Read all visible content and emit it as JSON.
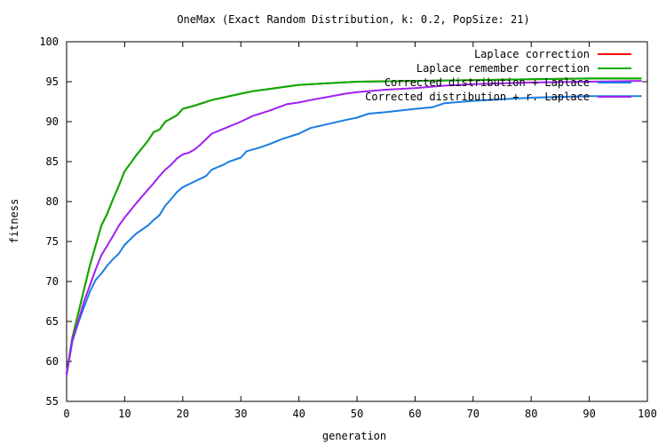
{
  "chart_data": {
    "type": "line",
    "title": "OneMax (Exact Random Distribution, k: 0.2, PopSize: 21)",
    "xlabel": "generation",
    "ylabel": "fitness",
    "xlim": [
      0,
      100
    ],
    "ylim": [
      55,
      100
    ],
    "x_ticks": [
      0,
      10,
      20,
      30,
      40,
      50,
      60,
      70,
      80,
      90,
      100
    ],
    "y_ticks": [
      55,
      60,
      65,
      70,
      75,
      80,
      85,
      90,
      95,
      100
    ],
    "grid": false,
    "legend_position": "top-right",
    "series": [
      {
        "name": "Laplace correction",
        "color": "#ff0000",
        "points": [
          [
            0,
            58.5
          ],
          [
            1,
            63
          ],
          [
            2,
            66
          ],
          [
            3,
            69
          ],
          [
            4,
            72
          ],
          [
            5,
            74.5
          ],
          [
            6,
            77
          ],
          [
            7,
            78.5
          ],
          [
            8,
            80.3
          ],
          [
            9,
            82
          ],
          [
            10,
            83.8
          ],
          [
            12,
            85.8
          ],
          [
            14,
            87.6
          ],
          [
            15,
            88.7
          ],
          [
            16,
            89
          ],
          [
            17,
            90
          ],
          [
            19,
            90.8
          ],
          [
            20,
            91.6
          ],
          [
            22,
            92
          ],
          [
            25,
            92.7
          ],
          [
            30,
            93.5
          ],
          [
            32,
            93.8
          ],
          [
            35,
            94.1
          ],
          [
            38,
            94.4
          ],
          [
            40,
            94.6
          ],
          [
            45,
            94.8
          ],
          [
            50,
            95
          ],
          [
            60,
            95.1
          ],
          [
            70,
            95.2
          ],
          [
            80,
            95.3
          ],
          [
            90,
            95.4
          ],
          [
            99,
            95.4
          ]
        ]
      },
      {
        "name": "Laplace remember correction",
        "color": "#00b000",
        "points": [
          [
            0,
            58.5
          ],
          [
            1,
            63
          ],
          [
            2,
            66
          ],
          [
            3,
            69
          ],
          [
            4,
            72
          ],
          [
            5,
            74.5
          ],
          [
            6,
            77
          ],
          [
            7,
            78.5
          ],
          [
            8,
            80.3
          ],
          [
            9,
            82
          ],
          [
            10,
            83.8
          ],
          [
            12,
            85.8
          ],
          [
            14,
            87.6
          ],
          [
            15,
            88.7
          ],
          [
            16,
            89
          ],
          [
            17,
            90
          ],
          [
            19,
            90.8
          ],
          [
            20,
            91.6
          ],
          [
            22,
            92
          ],
          [
            25,
            92.7
          ],
          [
            30,
            93.5
          ],
          [
            32,
            93.8
          ],
          [
            35,
            94.1
          ],
          [
            38,
            94.4
          ],
          [
            40,
            94.6
          ],
          [
            45,
            94.8
          ],
          [
            50,
            95
          ],
          [
            60,
            95.1
          ],
          [
            70,
            95.2
          ],
          [
            80,
            95.3
          ],
          [
            90,
            95.4
          ],
          [
            99,
            95.4
          ]
        ]
      },
      {
        "name": "Corrected distribution + Laplace",
        "color": "#1a7ee0",
        "points": [
          [
            0,
            58.3
          ],
          [
            1,
            62.5
          ],
          [
            2,
            64.8
          ],
          [
            3,
            66.8
          ],
          [
            4,
            68.7
          ],
          [
            5,
            70.2
          ],
          [
            6,
            71
          ],
          [
            7,
            72
          ],
          [
            8,
            72.8
          ],
          [
            9,
            73.5
          ],
          [
            10,
            74.6
          ],
          [
            12,
            76
          ],
          [
            14,
            77
          ],
          [
            15,
            77.7
          ],
          [
            16,
            78.3
          ],
          [
            17,
            79.5
          ],
          [
            18,
            80.3
          ],
          [
            19,
            81.2
          ],
          [
            20,
            81.8
          ],
          [
            22,
            82.5
          ],
          [
            24,
            83.2
          ],
          [
            25,
            84
          ],
          [
            27,
            84.6
          ],
          [
            28,
            85
          ],
          [
            30,
            85.5
          ],
          [
            31,
            86.3
          ],
          [
            33,
            86.7
          ],
          [
            35,
            87.2
          ],
          [
            37,
            87.8
          ],
          [
            40,
            88.5
          ],
          [
            42,
            89.2
          ],
          [
            45,
            89.7
          ],
          [
            48,
            90.2
          ],
          [
            50,
            90.5
          ],
          [
            52,
            91
          ],
          [
            55,
            91.2
          ],
          [
            60,
            91.6
          ],
          [
            63,
            91.8
          ],
          [
            65,
            92.3
          ],
          [
            70,
            92.6
          ],
          [
            75,
            92.8
          ],
          [
            80,
            93
          ],
          [
            85,
            93.1
          ],
          [
            90,
            93.2
          ],
          [
            99,
            93.2
          ]
        ]
      },
      {
        "name": "Corrected distribution + r. Laplace",
        "color": "#a020f0",
        "points": [
          [
            0,
            58.3
          ],
          [
            1,
            62.8
          ],
          [
            2,
            65
          ],
          [
            3,
            67.5
          ],
          [
            4,
            69.5
          ],
          [
            5,
            71.5
          ],
          [
            6,
            73.3
          ],
          [
            7,
            74.5
          ],
          [
            8,
            75.7
          ],
          [
            9,
            77
          ],
          [
            10,
            78
          ],
          [
            12,
            79.8
          ],
          [
            14,
            81.5
          ],
          [
            15,
            82.3
          ],
          [
            16,
            83.2
          ],
          [
            17,
            84
          ],
          [
            18,
            84.6
          ],
          [
            19,
            85.4
          ],
          [
            20,
            85.9
          ],
          [
            21,
            86.1
          ],
          [
            22,
            86.5
          ],
          [
            23,
            87.1
          ],
          [
            25,
            88.5
          ],
          [
            27,
            89.1
          ],
          [
            30,
            90
          ],
          [
            32,
            90.7
          ],
          [
            35,
            91.4
          ],
          [
            38,
            92.2
          ],
          [
            40,
            92.4
          ],
          [
            42,
            92.7
          ],
          [
            45,
            93.1
          ],
          [
            48,
            93.5
          ],
          [
            50,
            93.7
          ],
          [
            55,
            94
          ],
          [
            60,
            94.2
          ],
          [
            65,
            94.5
          ],
          [
            70,
            94.7
          ],
          [
            80,
            94.9
          ],
          [
            90,
            95
          ],
          [
            99,
            95.1
          ]
        ]
      }
    ]
  }
}
